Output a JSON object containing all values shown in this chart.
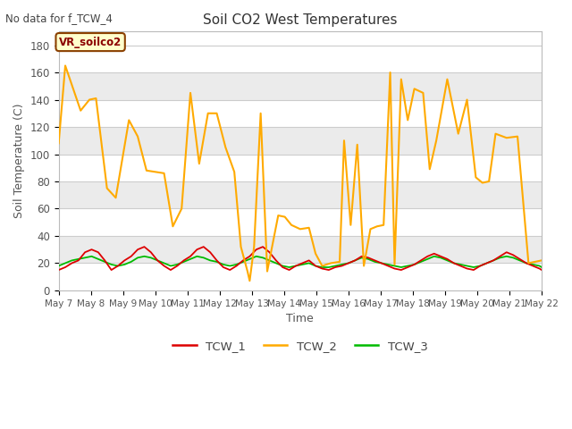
{
  "title": "Soil CO2 West Temperatures",
  "subtitle": "No data for f_TCW_4",
  "xlabel": "Time",
  "ylabel": "Soil Temperature (C)",
  "ylim": [
    0,
    190
  ],
  "yticks": [
    0,
    20,
    40,
    60,
    80,
    100,
    120,
    140,
    160,
    180
  ],
  "legend_labels": [
    "TCW_1",
    "TCW_2",
    "TCW_3"
  ],
  "line_colors": [
    "#dd0000",
    "#ffaa00",
    "#00bb00"
  ],
  "annotation_text": "VR_soilco2",
  "bg_color": "#ffffff",
  "fig_bg": "#ffffff",
  "grid_color": "#dddddd",
  "band_colors": [
    "#ffffff",
    "#ebebeb"
  ],
  "x_labels": [
    "May 7",
    "May 8",
    "May 9",
    "May 10",
    "May 11",
    "May 12",
    "May 13",
    "May 14",
    "May 15",
    "May 16",
    "May 17",
    "May 18",
    "May 19",
    "May 20",
    "May 21",
    "May 22"
  ],
  "tcw2_points": [
    [
      0.0,
      108
    ],
    [
      0.15,
      165
    ],
    [
      0.5,
      132
    ],
    [
      0.7,
      140
    ],
    [
      0.85,
      141
    ],
    [
      1.1,
      75
    ],
    [
      1.3,
      68
    ],
    [
      1.6,
      125
    ],
    [
      1.8,
      113
    ],
    [
      2.0,
      88
    ],
    [
      2.2,
      87
    ],
    [
      2.4,
      86
    ],
    [
      2.6,
      47
    ],
    [
      2.8,
      60
    ],
    [
      3.0,
      145
    ],
    [
      3.2,
      93
    ],
    [
      3.4,
      130
    ],
    [
      3.6,
      130
    ],
    [
      3.8,
      105
    ],
    [
      4.0,
      87
    ],
    [
      4.15,
      32
    ],
    [
      4.3,
      14
    ],
    [
      4.35,
      7
    ],
    [
      4.45,
      32
    ],
    [
      4.6,
      130
    ],
    [
      4.75,
      14
    ],
    [
      5.0,
      55
    ],
    [
      5.15,
      54
    ],
    [
      5.3,
      48
    ],
    [
      5.5,
      45
    ],
    [
      5.7,
      46
    ],
    [
      5.85,
      27
    ],
    [
      6.0,
      18
    ],
    [
      6.2,
      20
    ],
    [
      6.4,
      21
    ],
    [
      6.5,
      110
    ],
    [
      6.65,
      48
    ],
    [
      6.8,
      107
    ],
    [
      6.95,
      18
    ],
    [
      7.1,
      45
    ],
    [
      7.25,
      47
    ],
    [
      7.4,
      48
    ],
    [
      7.55,
      160
    ],
    [
      7.65,
      19
    ],
    [
      7.8,
      155
    ],
    [
      7.95,
      125
    ],
    [
      8.1,
      148
    ],
    [
      8.3,
      145
    ],
    [
      8.45,
      89
    ],
    [
      8.6,
      110
    ],
    [
      8.85,
      155
    ],
    [
      9.1,
      115
    ],
    [
      9.3,
      140
    ],
    [
      9.5,
      83
    ],
    [
      9.65,
      79
    ],
    [
      9.8,
      80
    ],
    [
      9.95,
      115
    ],
    [
      10.2,
      112
    ],
    [
      10.45,
      113
    ],
    [
      10.7,
      20
    ],
    [
      11.0,
      22
    ]
  ],
  "tcw1_points": [
    [
      0,
      15
    ],
    [
      0.15,
      17
    ],
    [
      0.3,
      20
    ],
    [
      0.45,
      22
    ],
    [
      0.6,
      28
    ],
    [
      0.75,
      30
    ],
    [
      0.9,
      28
    ],
    [
      1.05,
      22
    ],
    [
      1.2,
      15
    ],
    [
      1.35,
      18
    ],
    [
      1.5,
      22
    ],
    [
      1.65,
      25
    ],
    [
      1.8,
      30
    ],
    [
      1.95,
      32
    ],
    [
      2.1,
      28
    ],
    [
      2.25,
      22
    ],
    [
      2.4,
      18
    ],
    [
      2.55,
      15
    ],
    [
      2.7,
      18
    ],
    [
      2.85,
      22
    ],
    [
      3.0,
      25
    ],
    [
      3.15,
      30
    ],
    [
      3.3,
      32
    ],
    [
      3.45,
      28
    ],
    [
      3.6,
      22
    ],
    [
      3.75,
      17
    ],
    [
      3.9,
      15
    ],
    [
      4.05,
      18
    ],
    [
      4.2,
      22
    ],
    [
      4.35,
      25
    ],
    [
      4.5,
      30
    ],
    [
      4.65,
      32
    ],
    [
      4.8,
      28
    ],
    [
      4.95,
      22
    ],
    [
      5.1,
      17
    ],
    [
      5.25,
      15
    ],
    [
      5.4,
      18
    ],
    [
      5.55,
      20
    ],
    [
      5.7,
      22
    ],
    [
      5.85,
      18
    ],
    [
      6.0,
      16
    ],
    [
      6.15,
      15
    ],
    [
      6.3,
      17
    ],
    [
      6.45,
      18
    ],
    [
      6.6,
      20
    ],
    [
      6.75,
      22
    ],
    [
      6.9,
      25
    ],
    [
      7.05,
      24
    ],
    [
      7.2,
      22
    ],
    [
      7.35,
      20
    ],
    [
      7.5,
      18
    ],
    [
      7.65,
      16
    ],
    [
      7.8,
      15
    ],
    [
      7.95,
      17
    ],
    [
      8.1,
      19
    ],
    [
      8.25,
      22
    ],
    [
      8.4,
      25
    ],
    [
      8.55,
      27
    ],
    [
      8.7,
      25
    ],
    [
      8.85,
      23
    ],
    [
      9.0,
      20
    ],
    [
      9.15,
      18
    ],
    [
      9.3,
      16
    ],
    [
      9.45,
      15
    ],
    [
      9.6,
      18
    ],
    [
      9.75,
      20
    ],
    [
      9.9,
      22
    ],
    [
      10.05,
      25
    ],
    [
      10.2,
      28
    ],
    [
      10.35,
      26
    ],
    [
      10.5,
      23
    ],
    [
      10.65,
      20
    ],
    [
      10.8,
      18
    ],
    [
      10.95,
      16
    ],
    [
      11.0,
      15
    ]
  ],
  "tcw3_points": [
    [
      0,
      18
    ],
    [
      0.15,
      20
    ],
    [
      0.3,
      22
    ],
    [
      0.45,
      23
    ],
    [
      0.6,
      24
    ],
    [
      0.75,
      25
    ],
    [
      0.9,
      23
    ],
    [
      1.05,
      21
    ],
    [
      1.2,
      19
    ],
    [
      1.35,
      18
    ],
    [
      1.5,
      19
    ],
    [
      1.65,
      21
    ],
    [
      1.8,
      24
    ],
    [
      1.95,
      25
    ],
    [
      2.1,
      24
    ],
    [
      2.25,
      22
    ],
    [
      2.4,
      20
    ],
    [
      2.55,
      18
    ],
    [
      2.7,
      19
    ],
    [
      2.85,
      21
    ],
    [
      3.0,
      23
    ],
    [
      3.15,
      25
    ],
    [
      3.3,
      24
    ],
    [
      3.45,
      22
    ],
    [
      3.6,
      21
    ],
    [
      3.75,
      19
    ],
    [
      3.9,
      18
    ],
    [
      4.05,
      19
    ],
    [
      4.2,
      21
    ],
    [
      4.35,
      23
    ],
    [
      4.5,
      25
    ],
    [
      4.65,
      24
    ],
    [
      4.8,
      22
    ],
    [
      4.95,
      20
    ],
    [
      5.1,
      18
    ],
    [
      5.25,
      17
    ],
    [
      5.4,
      18
    ],
    [
      5.55,
      19
    ],
    [
      5.7,
      20
    ],
    [
      5.85,
      18
    ],
    [
      6.0,
      17
    ],
    [
      6.15,
      17
    ],
    [
      6.3,
      18
    ],
    [
      6.45,
      19
    ],
    [
      6.6,
      20
    ],
    [
      6.75,
      22
    ],
    [
      6.9,
      24
    ],
    [
      7.05,
      23
    ],
    [
      7.2,
      21
    ],
    [
      7.35,
      20
    ],
    [
      7.5,
      19
    ],
    [
      7.65,
      18
    ],
    [
      7.8,
      17
    ],
    [
      7.95,
      18
    ],
    [
      8.1,
      19
    ],
    [
      8.25,
      21
    ],
    [
      8.4,
      23
    ],
    [
      8.55,
      25
    ],
    [
      8.7,
      24
    ],
    [
      8.85,
      22
    ],
    [
      9.0,
      20
    ],
    [
      9.15,
      19
    ],
    [
      9.3,
      18
    ],
    [
      9.45,
      17
    ],
    [
      9.6,
      18
    ],
    [
      9.75,
      20
    ],
    [
      9.9,
      22
    ],
    [
      10.05,
      24
    ],
    [
      10.2,
      25
    ],
    [
      10.35,
      24
    ],
    [
      10.5,
      22
    ],
    [
      10.65,
      20
    ],
    [
      10.8,
      19
    ],
    [
      10.95,
      18
    ],
    [
      11.0,
      17
    ]
  ]
}
